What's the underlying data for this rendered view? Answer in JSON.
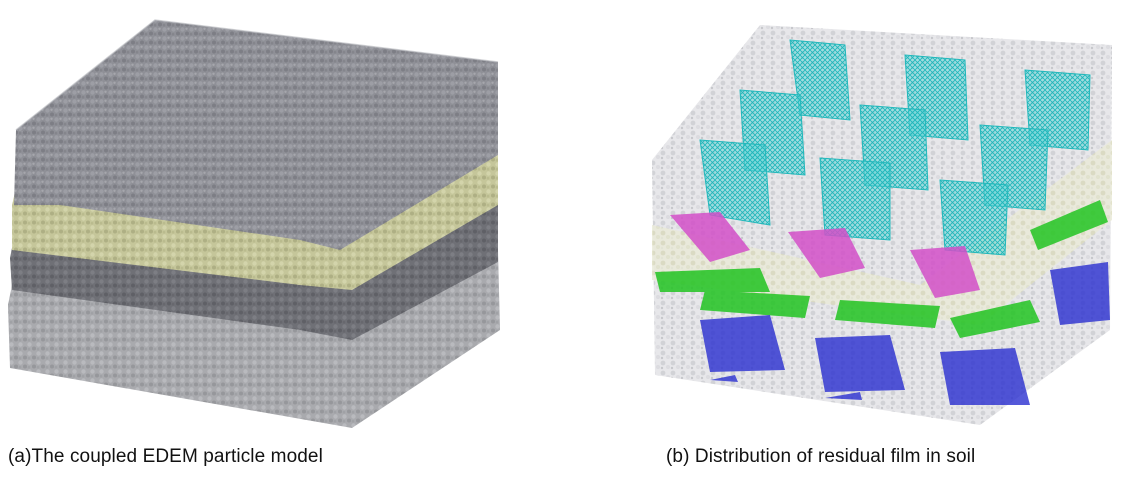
{
  "figure": {
    "panel_a": {
      "caption": "(a)The coupled EDEM particle model",
      "layer_colors": {
        "top_soil": "#8c8c94",
        "yellow_band": "#c5c69a",
        "dark_band": "#6f7076",
        "bottom_band": "#a9aaae"
      }
    },
    "panel_b": {
      "caption": "(b) Distribution of residual film in soil",
      "film_colors": {
        "cyan": "#33c9cc",
        "magenta": "#d24fc8",
        "green": "#22c422",
        "blue": "#2a2fd0"
      }
    }
  }
}
